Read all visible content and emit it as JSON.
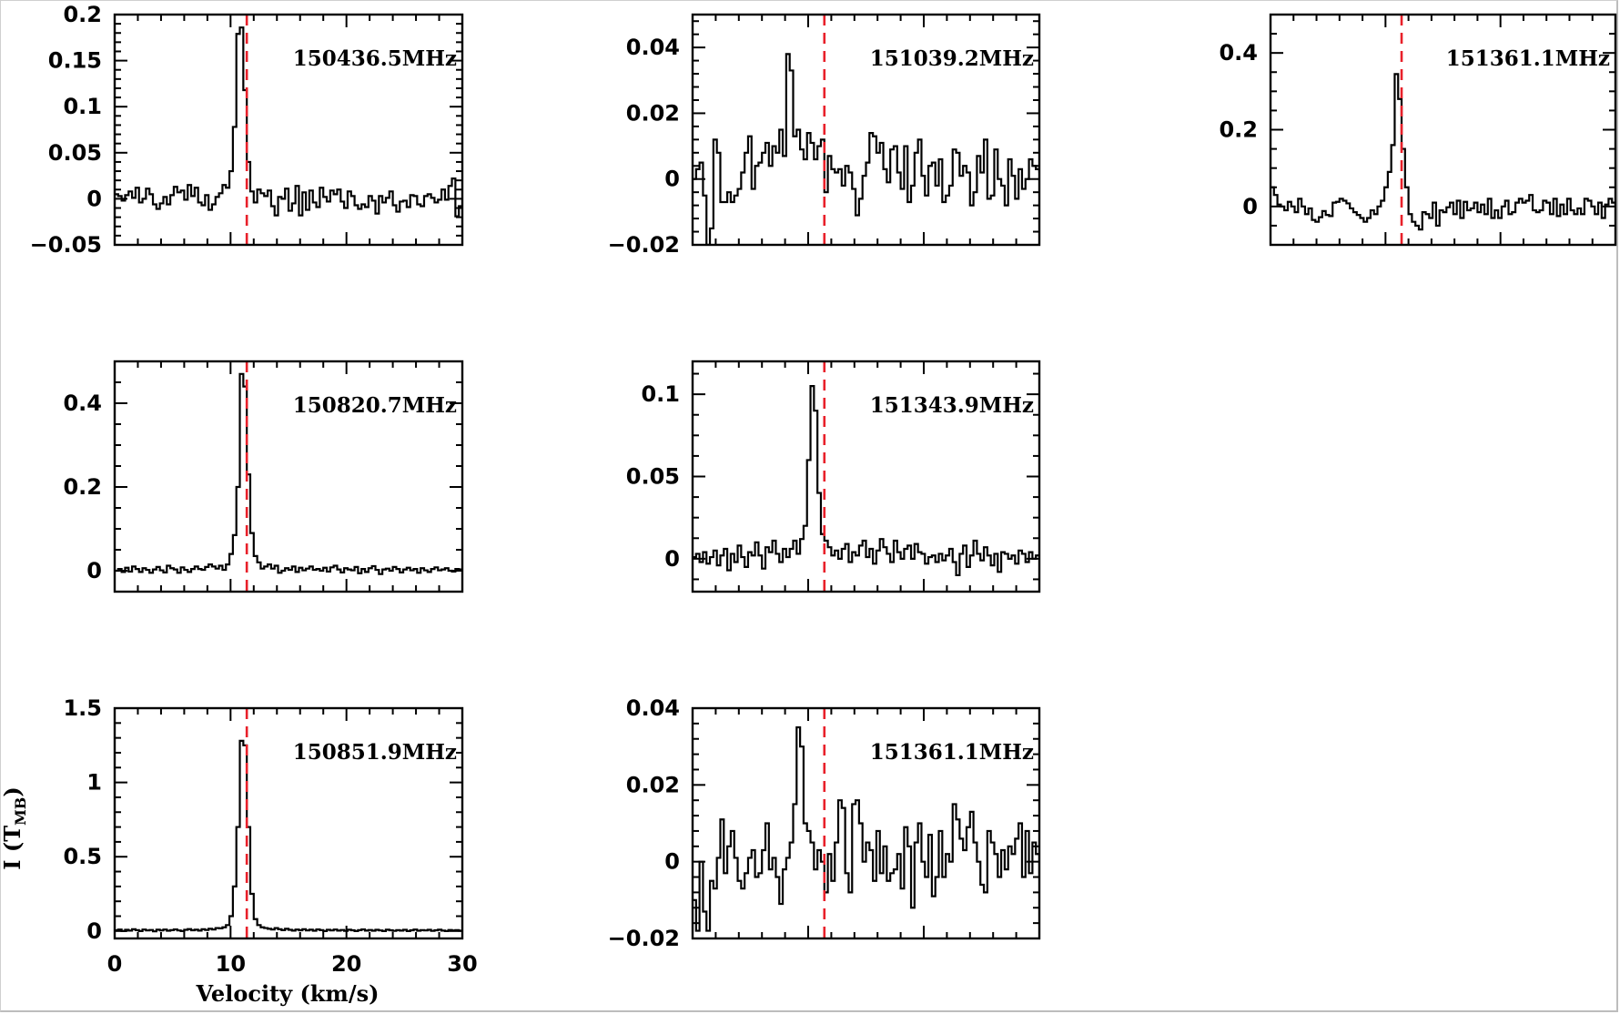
{
  "colors": {
    "spectrum": "#000000",
    "systemic_velocity_line": "#e8202a",
    "frame": "#000000"
  },
  "xlabel": "Velocity (km/s)",
  "ylabel": "I (T",
  "ylabel_sub": "MB",
  "ylabel_close": ")",
  "chart_data": [
    {
      "type": "line",
      "step": true,
      "label": "150436.5MHz",
      "xlim": [
        0,
        30
      ],
      "ylim": [
        -0.05,
        0.2
      ],
      "yticks": [
        -0.05,
        0,
        0.05,
        0.1,
        0.15,
        0.2
      ],
      "ytick_labels": [
        "−0.05",
        "0",
        "0.05",
        "0.1",
        "0.15",
        "0.2"
      ],
      "xticks": [
        0,
        10,
        20,
        30
      ],
      "xtick_labels": [],
      "vline": 11.4,
      "series": [
        {
          "x_start": 0,
          "dx": 0.3,
          "values": [
            0.005,
            0.003,
            -0.002,
            0.004,
            0.008,
            0.001,
            0.012,
            -0.004,
            0.0,
            0.011,
            0.005,
            -0.006,
            -0.011,
            -0.005,
            0.002,
            -0.006,
            0.004,
            0.013,
            0.007,
            0.009,
            -0.001,
            0.015,
            0.003,
            0.012,
            -0.004,
            -0.007,
            0.004,
            -0.012,
            -0.006,
            0.002,
            0.006,
            0.015,
            0.012,
            0.03,
            0.078,
            0.179,
            0.186,
            0.118,
            0.04,
            0.008,
            -0.004,
            0.01,
            0.006,
            0.003,
            0.009,
            -0.008,
            -0.018,
            0.002,
            0.0,
            0.011,
            -0.013,
            -0.005,
            0.014,
            -0.018,
            0.007,
            -0.012,
            0.009,
            -0.004,
            -0.009,
            0.012,
            0.002,
            -0.003,
            0.009,
            0.005,
            0.01,
            -0.003,
            -0.01,
            0.008,
            0.003,
            -0.007,
            -0.011,
            -0.006,
            -0.009,
            0.003,
            -0.002,
            -0.016,
            0.003,
            -0.004,
            0.001,
            0.008,
            -0.007,
            -0.014,
            -0.003,
            -0.002,
            -0.009,
            0.004,
            0.003,
            -0.006,
            -0.008,
            0.003,
            0.005,
            0.001,
            -0.004,
            -0.001,
            0.01,
            -0.001,
            0.014,
            0.022,
            -0.019,
            -0.008
          ]
        }
      ]
    },
    {
      "type": "line",
      "step": true,
      "label": "151039.2MHz",
      "xlim": [
        0,
        30
      ],
      "ylim": [
        -0.02,
        0.05
      ],
      "yticks": [
        -0.02,
        0,
        0.02,
        0.04
      ],
      "ytick_labels": [
        "−0.02",
        "0",
        "0.02",
        "0.04"
      ],
      "xticks": [
        0,
        10,
        20,
        30
      ],
      "xtick_labels": [],
      "vline": 11.4,
      "series": [
        {
          "x_start": 0,
          "dx": 0.3,
          "values": [
            0.0,
            0.003,
            0.005,
            -0.005,
            -0.02,
            -0.015,
            0.012,
            0.008,
            -0.007,
            -0.007,
            -0.004,
            -0.007,
            -0.005,
            -0.003,
            0.002,
            0.008,
            0.013,
            -0.003,
            0.004,
            0.005,
            0.008,
            0.011,
            0.004,
            0.01,
            0.008,
            0.015,
            0.007,
            0.038,
            0.033,
            0.013,
            0.015,
            0.009,
            0.006,
            0.014,
            0.011,
            0.006,
            0.01,
            0.012,
            -0.004,
            0.007,
            0.003,
            0.002,
            0.003,
            -0.002,
            0.004,
            0.002,
            -0.003,
            -0.011,
            -0.006,
            0.001,
            0.005,
            0.014,
            0.013,
            0.008,
            0.011,
            0.003,
            -0.001,
            0.009,
            0.01,
            0.002,
            -0.003,
            0.01,
            -0.007,
            -0.002,
            0.008,
            0.012,
            0.001,
            -0.005,
            0.004,
            0.005,
            -0.002,
            0.006,
            -0.007,
            -0.005,
            -0.002,
            0.009,
            0.008,
            0.001,
            0.004,
            0.002,
            -0.008,
            -0.004,
            0.007,
            0.002,
            0.012,
            -0.006,
            -0.005,
            0.009,
            0.0,
            -0.002,
            -0.008,
            0.006,
            0.001,
            -0.006,
            0.003,
            -0.003,
            0.0,
            0.006,
            0.004,
            0.003,
            0.002
          ]
        }
      ]
    },
    {
      "type": "line",
      "step": true,
      "label": "151361.1MHz",
      "xlim": [
        0,
        30
      ],
      "ylim": [
        -0.1,
        0.5
      ],
      "yticks": [
        0,
        0.2,
        0.4
      ],
      "ytick_labels": [
        "0",
        "0.2",
        "0.4"
      ],
      "xticks": [
        0,
        10,
        20,
        30
      ],
      "xtick_labels": [],
      "vline": 11.4,
      "series": [
        {
          "x_start": 0,
          "dx": 0.3,
          "values": [
            0.05,
            0.03,
            0.005,
            0.0,
            -0.01,
            0.012,
            0.0,
            -0.015,
            0.02,
            0.0,
            -0.02,
            -0.005,
            -0.035,
            -0.04,
            -0.028,
            -0.012,
            -0.022,
            -0.025,
            0.01,
            0.012,
            0.02,
            0.015,
            0.008,
            -0.005,
            -0.015,
            -0.022,
            -0.03,
            -0.04,
            -0.03,
            -0.01,
            -0.02,
            0.0,
            0.015,
            0.05,
            0.09,
            0.16,
            0.345,
            0.28,
            0.15,
            0.05,
            -0.02,
            -0.04,
            -0.05,
            -0.06,
            -0.015,
            -0.02,
            -0.03,
            0.01,
            -0.05,
            -0.01,
            -0.015,
            -0.002,
            0.01,
            -0.02,
            0.015,
            -0.03,
            0.012,
            -0.01,
            -0.005,
            0.01,
            -0.015,
            0.005,
            -0.02,
            0.02,
            -0.03,
            -0.01,
            -0.03,
            0.0,
            0.015,
            -0.02,
            -0.015,
            0.01,
            0.02,
            0.01,
            0.015,
            0.03,
            -0.01,
            -0.015,
            -0.01,
            0.015,
            0.01,
            -0.02,
            0.02,
            -0.025,
            0.005,
            -0.02,
            0.02,
            -0.01,
            -0.02,
            -0.005,
            -0.02,
            0.02,
            0.015,
            0.0,
            -0.02,
            0.01,
            -0.03,
            0.005,
            0.02,
            0.01,
            0.0
          ]
        }
      ]
    },
    {
      "type": "line",
      "step": true,
      "label": "150820.7MHz",
      "xlim": [
        0,
        30
      ],
      "ylim": [
        -0.05,
        0.5
      ],
      "yticks": [
        0,
        0.2,
        0.4
      ],
      "ytick_labels": [
        "0",
        "0.2",
        "0.4"
      ],
      "xticks": [
        0,
        10,
        20,
        30
      ],
      "xtick_labels": [],
      "vline": 11.4,
      "series": [
        {
          "x_start": 0,
          "dx": 0.3,
          "values": [
            0.0,
            0.004,
            -0.003,
            0.007,
            -0.002,
            0.01,
            0.004,
            -0.003,
            0.006,
            0.002,
            -0.005,
            0.003,
            0.009,
            0.001,
            -0.004,
            0.012,
            0.006,
            0.003,
            -0.005,
            0.008,
            0.002,
            -0.003,
            0.004,
            0.01,
            0.004,
            0.002,
            0.009,
            0.015,
            0.01,
            0.005,
            0.012,
            0.002,
            0.015,
            0.04,
            0.085,
            0.2,
            0.47,
            0.44,
            0.23,
            0.09,
            0.035,
            0.02,
            0.005,
            0.01,
            0.015,
            0.005,
            0.012,
            -0.005,
            0.0,
            0.006,
            0.002,
            0.01,
            -0.003,
            0.007,
            0.001,
            0.005,
            0.01,
            0.002,
            0.004,
            0.0,
            0.007,
            -0.002,
            0.008,
            0.012,
            0.003,
            -0.004,
            0.006,
            0.003,
            0.001,
            0.009,
            -0.006,
            0.004,
            -0.003,
            0.006,
            0.011,
            0.002,
            -0.008,
            0.003,
            0.005,
            0.0,
            0.009,
            0.004,
            -0.004,
            0.003,
            0.007,
            0.001,
            0.004,
            -0.005,
            0.006,
            0.001,
            -0.003,
            0.004,
            0.008,
            0.001,
            0.003,
            0.006,
            0.0,
            -0.002,
            0.004,
            0.003,
            0.006
          ]
        }
      ]
    },
    {
      "type": "line",
      "step": true,
      "label": "151343.9MHz",
      "xlim": [
        0,
        30
      ],
      "ylim": [
        -0.02,
        0.12
      ],
      "yticks": [
        0,
        0.05,
        0.1
      ],
      "ytick_labels": [
        "0",
        "0.05",
        "0.1"
      ],
      "xticks": [
        0,
        10,
        20,
        30
      ],
      "xtick_labels": [],
      "vline": 11.4,
      "series": [
        {
          "x_start": 0,
          "dx": 0.3,
          "values": [
            0.001,
            0.003,
            -0.002,
            0.004,
            -0.003,
            0.001,
            0.005,
            -0.004,
            0.002,
            0.006,
            -0.007,
            0.003,
            -0.002,
            0.008,
            0.001,
            -0.005,
            0.004,
            0.002,
            0.01,
            0.002,
            -0.006,
            0.007,
            0.004,
            0.011,
            0.003,
            -0.002,
            0.006,
            0.001,
            0.006,
            0.011,
            0.003,
            0.012,
            0.02,
            0.06,
            0.105,
            0.09,
            0.04,
            0.015,
            0.011,
            0.007,
            0.002,
            0.005,
            0.0,
            0.006,
            0.009,
            -0.002,
            0.004,
            0.002,
            0.008,
            0.011,
            0.001,
            0.006,
            -0.003,
            0.005,
            0.012,
            0.007,
            0.003,
            -0.002,
            0.011,
            0.004,
            0.0,
            0.006,
            0.008,
            0.0,
            0.009,
            0.004,
            0.003,
            -0.003,
            0.001,
            0.002,
            -0.002,
            0.003,
            -0.001,
            0.002,
            0.006,
            -0.002,
            -0.01,
            0.003,
            0.008,
            -0.005,
            0.002,
            0.011,
            0.003,
            -0.001,
            0.007,
            0.002,
            -0.004,
            0.003,
            -0.008,
            0.004,
            0.003,
            0.0,
            0.002,
            -0.003,
            0.005,
            0.003,
            -0.002,
            0.004,
            0.0,
            0.002,
            0.003
          ]
        }
      ]
    },
    {
      "type": "line",
      "step": true,
      "label": "151361.1MHz",
      "xlim": [
        0,
        30
      ],
      "ylim": [
        -0.02,
        0.04
      ],
      "yticks": [
        -0.02,
        0,
        0.02,
        0.04
      ],
      "ytick_labels": [
        "−0.02",
        "0",
        "0.02",
        "0.04"
      ],
      "xticks": [
        0,
        10,
        20,
        30
      ],
      "xtick_labels": [],
      "vline": 11.4,
      "series": [
        {
          "x_start": 0,
          "dx": 0.3,
          "values": [
            -0.01,
            -0.018,
            0.0,
            -0.013,
            -0.018,
            -0.005,
            -0.007,
            0.001,
            0.011,
            -0.003,
            0.004,
            0.008,
            0.001,
            -0.005,
            -0.007,
            -0.003,
            0.001,
            0.003,
            -0.004,
            -0.003,
            0.003,
            0.01,
            -0.002,
            0.001,
            -0.004,
            -0.011,
            -0.002,
            0.001,
            0.005,
            0.015,
            0.035,
            0.03,
            0.01,
            0.008,
            0.005,
            -0.002,
            0.003,
            0.0,
            -0.008,
            0.002,
            -0.005,
            0.005,
            0.016,
            0.014,
            -0.003,
            -0.008,
            0.015,
            0.016,
            0.01,
            0.0,
            0.005,
            0.003,
            -0.005,
            0.008,
            -0.003,
            0.004,
            -0.005,
            -0.003,
            -0.002,
            0.002,
            -0.007,
            0.009,
            0.004,
            -0.012,
            0.005,
            0.01,
            0.0,
            -0.004,
            0.007,
            -0.009,
            -0.004,
            0.008,
            -0.004,
            0.002,
            0.0,
            0.015,
            0.011,
            0.006,
            0.003,
            0.009,
            0.013,
            0.005,
            0.0,
            -0.006,
            -0.008,
            0.008,
            0.005,
            0.002,
            -0.004,
            0.003,
            -0.002,
            0.004,
            0.002,
            0.006,
            0.01,
            -0.004,
            0.008,
            -0.003,
            0.005,
            0.002,
            -0.004
          ]
        }
      ]
    },
    {
      "type": "line",
      "step": true,
      "label": "150851.9MHz",
      "xlim": [
        0,
        30
      ],
      "ylim": [
        -0.05,
        1.5
      ],
      "yticks": [
        0,
        0.5,
        1,
        1.5
      ],
      "ytick_labels": [
        "0",
        "0.5",
        "1",
        "1.5"
      ],
      "xticks": [
        0,
        10,
        20,
        30
      ],
      "xtick_labels": [
        "0",
        "10",
        "20",
        "30"
      ],
      "vline": 11.4,
      "series": [
        {
          "x_start": 0,
          "dx": 0.3,
          "values": [
            0.005,
            0.01,
            0.0,
            0.008,
            0.003,
            0.012,
            0.006,
            0.0,
            0.01,
            0.004,
            0.007,
            -0.002,
            0.009,
            0.004,
            0.01,
            0.002,
            0.006,
            0.011,
            0.004,
            0.0,
            0.008,
            0.013,
            0.005,
            0.009,
            0.003,
            0.012,
            0.007,
            0.015,
            0.01,
            0.02,
            0.018,
            0.025,
            0.04,
            0.1,
            0.3,
            0.7,
            1.28,
            1.25,
            0.7,
            0.25,
            0.08,
            0.04,
            0.025,
            0.02,
            0.015,
            0.01,
            0.02,
            0.012,
            0.006,
            0.015,
            0.008,
            0.003,
            0.01,
            0.005,
            0.012,
            0.004,
            0.009,
            0.002,
            0.011,
            0.006,
            0.0,
            0.008,
            0.004,
            0.01,
            0.003,
            0.007,
            0.001,
            0.009,
            0.005,
            0.0,
            0.006,
            0.011,
            0.003,
            0.007,
            0.002,
            0.008,
            0.004,
            0.0,
            0.009,
            0.005,
            0.001,
            0.006,
            0.003,
            0.008,
            0.0,
            0.005,
            0.01,
            0.002,
            0.006,
            0.004,
            0.008,
            0.001,
            0.005,
            0.009,
            0.003,
            0.0,
            0.007,
            0.004,
            0.006,
            0.002,
            0.005
          ]
        }
      ]
    }
  ]
}
